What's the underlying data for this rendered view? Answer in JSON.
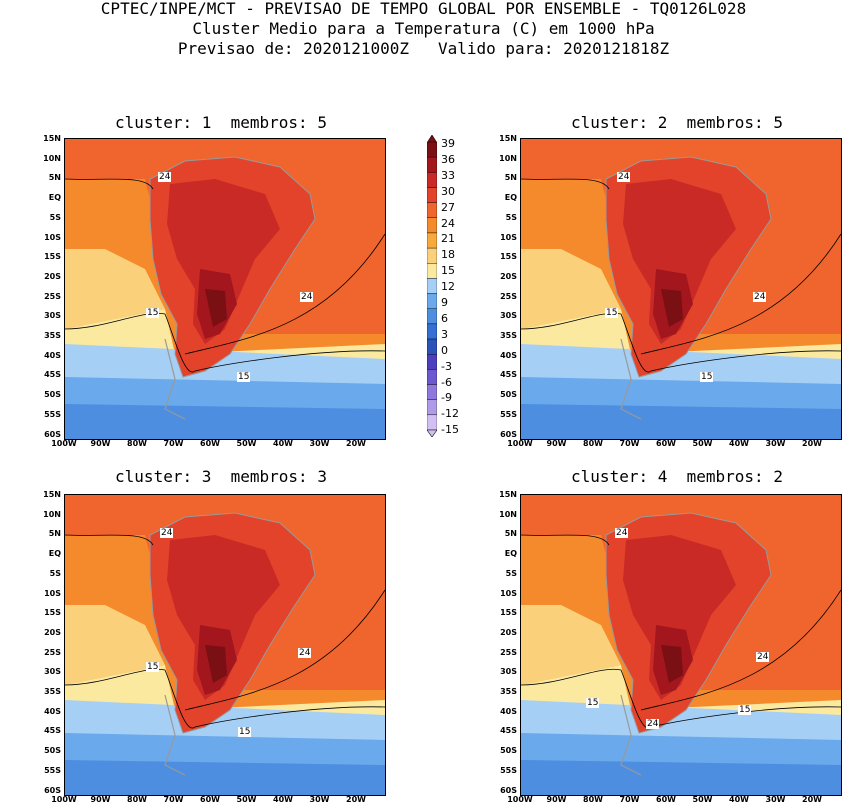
{
  "title": {
    "line1": "CPTEC/INPE/MCT - PREVISAO DE TEMPO GLOBAL POR ENSEMBLE - TQ0126L028",
    "line2": "Cluster Medio para a Temperatura (C) em 1000 hPa",
    "line3": "Previsao de: 2020121000Z   Valido para: 2020121818Z"
  },
  "latitude_labels": [
    "15N",
    "10N",
    "5N",
    "EQ",
    "5S",
    "10S",
    "15S",
    "20S",
    "25S",
    "30S",
    "35S",
    "40S",
    "45S",
    "50S",
    "55S",
    "60S"
  ],
  "longitude_labels": [
    "100W",
    "90W",
    "80W",
    "70W",
    "60W",
    "50W",
    "40W",
    "30W",
    "20W"
  ],
  "colorbar": {
    "labels": [
      "39",
      "36",
      "33",
      "30",
      "27",
      "24",
      "21",
      "18",
      "15",
      "12",
      "9",
      "6",
      "3",
      "0",
      "-3",
      "-6",
      "-9",
      "-12",
      "-15"
    ],
    "colors": [
      "#7a0f14",
      "#a3161d",
      "#c92a26",
      "#e2432a",
      "#f0642d",
      "#f58a2c",
      "#f8a93c",
      "#fbd07a",
      "#fbe9a0",
      "#a6cff5",
      "#6aa9ec",
      "#4d8ee0",
      "#356fd3",
      "#2a52b8",
      "#4b3fbf",
      "#6d58cf",
      "#8e78dd",
      "#b09be8",
      "#d2c0f2"
    ]
  },
  "panels": [
    {
      "title": "cluster: 1  membros: 5",
      "contour_labels": [
        "24",
        "24",
        "15",
        "15"
      ]
    },
    {
      "title": "cluster: 2  membros: 5",
      "contour_labels": [
        "24",
        "24",
        "15",
        "15"
      ]
    },
    {
      "title": "cluster: 3  membros: 3",
      "contour_labels": [
        "24",
        "24",
        "15",
        "15"
      ]
    },
    {
      "title": "cluster: 4  membros: 2",
      "contour_labels": [
        "24",
        "24",
        "15",
        "15",
        "24"
      ]
    }
  ]
}
